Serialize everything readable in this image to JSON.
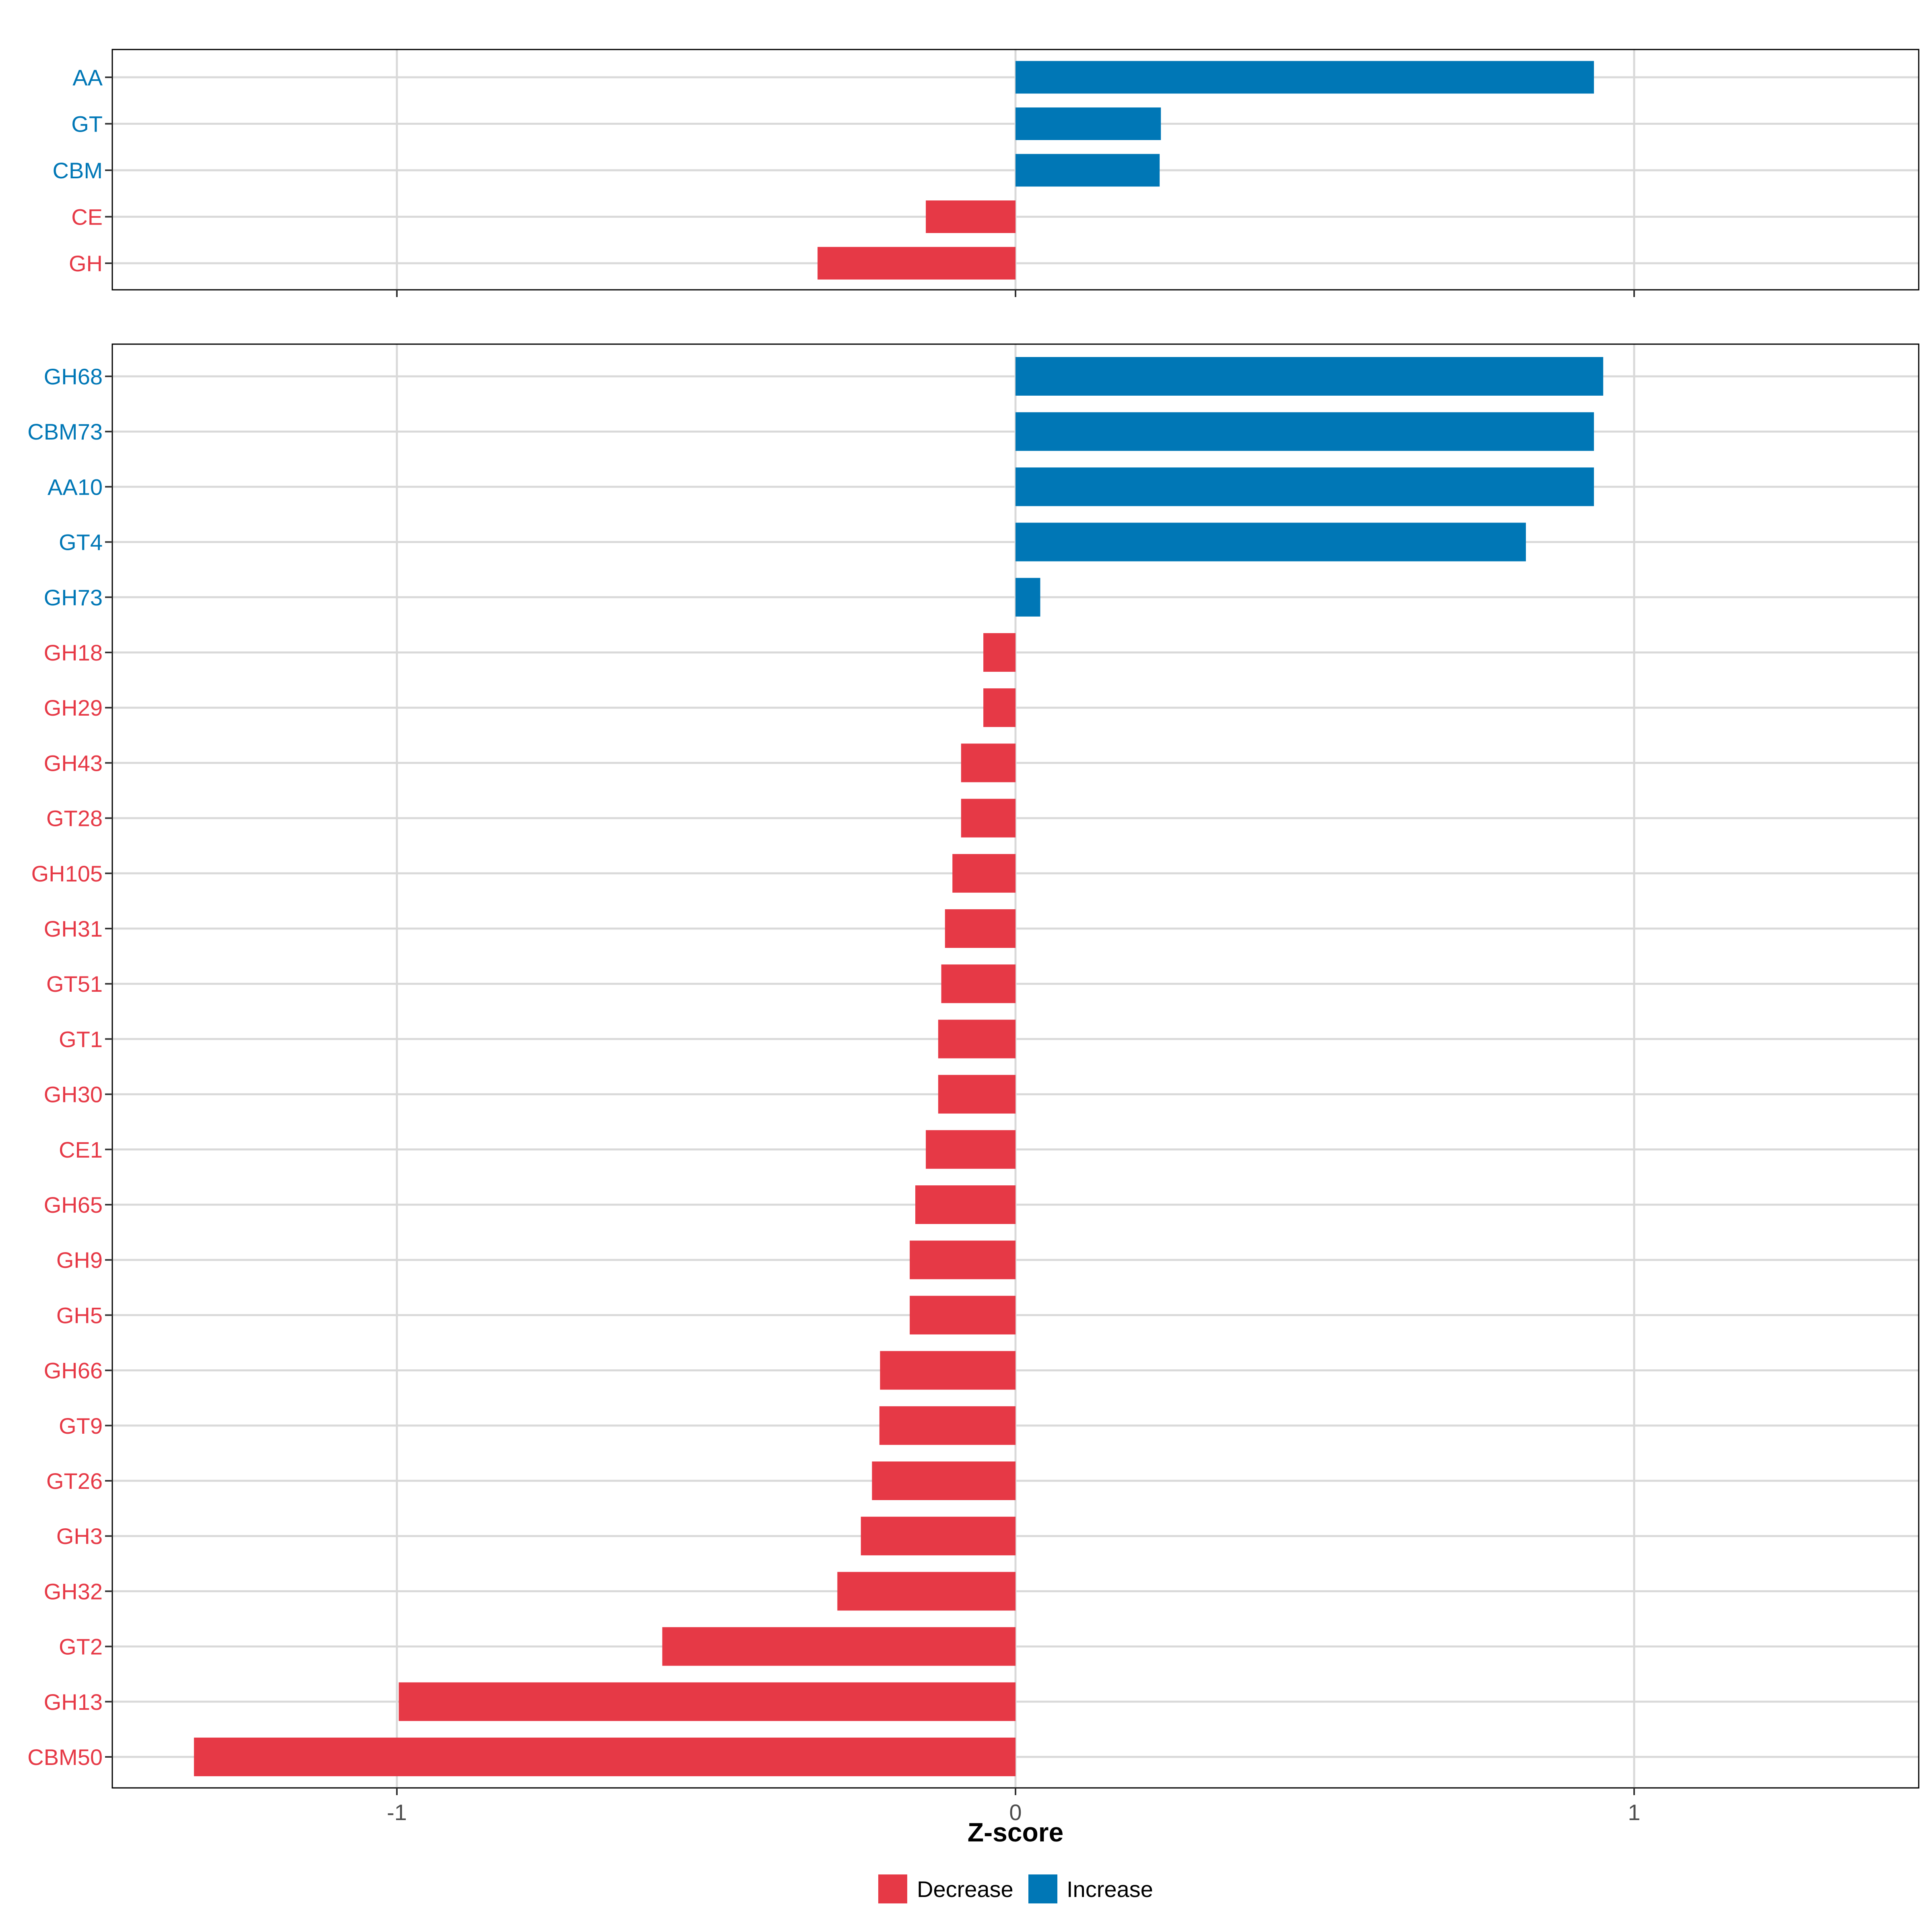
{
  "colors": {
    "decrease": "#E63946",
    "increase": "#0077B6",
    "grid": "#D9D9D9",
    "axis": "#000000",
    "tick_text": "#4D4D4D"
  },
  "chart_data": [
    {
      "type": "bar",
      "orientation": "horizontal",
      "panel": "top",
      "categories": [
        "AA",
        "GT",
        "CBM",
        "CE",
        "GH"
      ],
      "values": [
        0.935,
        0.235,
        0.233,
        -0.145,
        -0.32
      ],
      "xlim": [
        -1.46,
        1.46
      ],
      "xticks": [
        -1,
        0,
        1
      ],
      "grid": true
    },
    {
      "type": "bar",
      "orientation": "horizontal",
      "panel": "bottom",
      "categories": [
        "GH68",
        "CBM73",
        "AA10",
        "GT4",
        "GH73",
        "GH18",
        "GH29",
        "GH43",
        "GT28",
        "GH105",
        "GH31",
        "GT51",
        "GT1",
        "GH30",
        "CE1",
        "GH65",
        "GH9",
        "GH5",
        "GH66",
        "GT9",
        "GT26",
        "GH3",
        "GH32",
        "GT2",
        "GH13",
        "CBM50"
      ],
      "values": [
        0.95,
        0.935,
        0.935,
        0.825,
        0.04,
        -0.052,
        -0.052,
        -0.088,
        -0.088,
        -0.102,
        -0.114,
        -0.12,
        -0.125,
        -0.125,
        -0.145,
        -0.162,
        -0.171,
        -0.171,
        -0.219,
        -0.22,
        -0.232,
        -0.25,
        -0.288,
        -0.571,
        -0.997,
        -1.328
      ],
      "xlim": [
        -1.46,
        1.46
      ],
      "xticks": [
        -1,
        0,
        1
      ],
      "grid": true
    }
  ],
  "xaxis": {
    "title": "Z-score",
    "tick_labels": [
      "-1",
      "0",
      "1"
    ]
  },
  "legend": {
    "position": "bottom",
    "items": [
      {
        "label": "Decrease",
        "key": "decrease"
      },
      {
        "label": "Increase",
        "key": "increase"
      }
    ]
  }
}
